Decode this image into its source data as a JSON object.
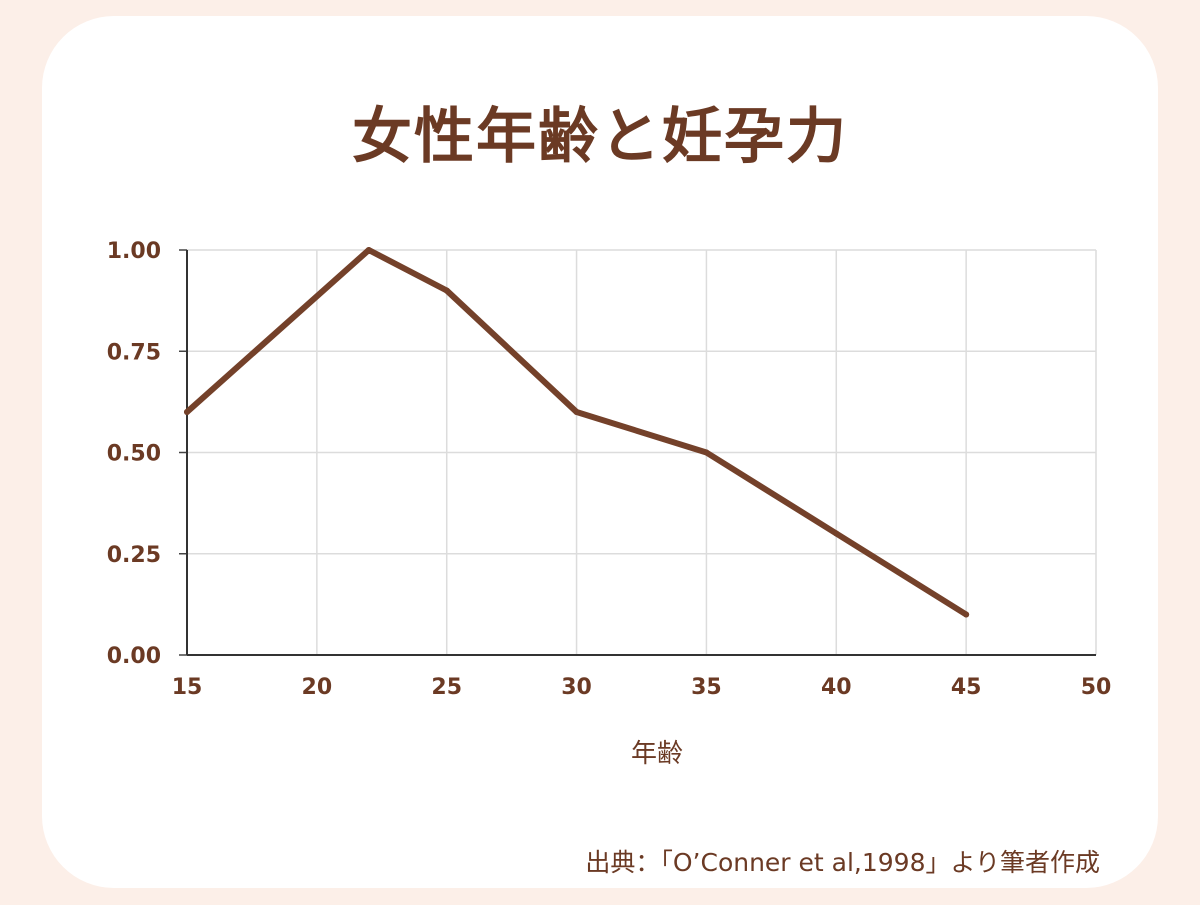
{
  "title": "女性年齢と妊孕力",
  "source": "出典：「O’Conner et al,1998」より筆者作成",
  "colors": {
    "line": "#74412a",
    "grid": "#dcdcdc",
    "text": "#6b3a24",
    "background": "#fcefe8"
  },
  "chart_data": {
    "type": "line",
    "title": "女性年齢と妊孕力",
    "xlabel": "年齢",
    "ylabel": "",
    "xlim": [
      15,
      50
    ],
    "ylim": [
      0,
      1
    ],
    "x_ticks": [
      "15",
      "20",
      "25",
      "30",
      "35",
      "40",
      "45",
      "50"
    ],
    "y_ticks": [
      "0.00",
      "0.25",
      "0.50",
      "0.75",
      "1.00"
    ],
    "grid": true,
    "legend": "none",
    "series": [
      {
        "x": [
          15,
          22,
          25,
          30,
          35,
          40,
          45
        ],
        "values": [
          0.6,
          1.0,
          0.9,
          0.6,
          0.5,
          0.3,
          0.1
        ]
      }
    ]
  }
}
